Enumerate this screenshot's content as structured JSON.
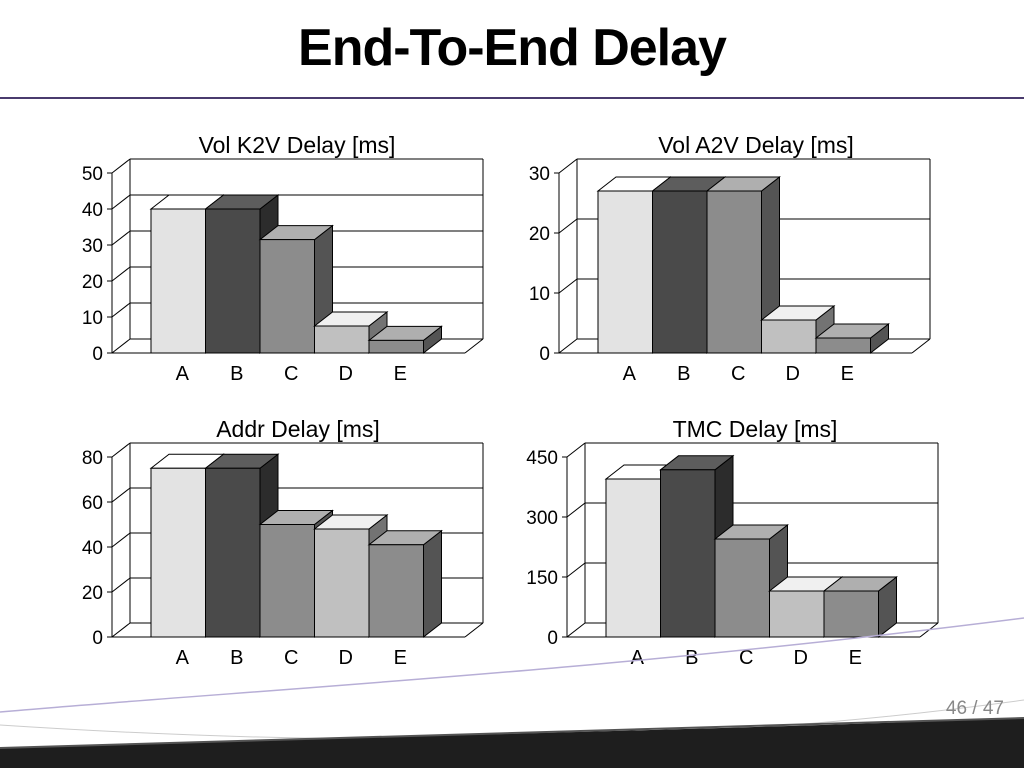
{
  "slide": {
    "title": "End-To-End Delay",
    "page_current": "46",
    "page_separator": "/",
    "page_total": "47"
  },
  "bar_colors": [
    "#e3e3e3",
    "#4a4a4a",
    "#8c8c8c",
    "#c0c0c0",
    "#8c8c8c"
  ],
  "chart_data": [
    {
      "type": "bar",
      "title": "Vol K2V Delay [ms]",
      "categories": [
        "A",
        "B",
        "C",
        "D",
        "E"
      ],
      "values": [
        40,
        40,
        31.5,
        7.5,
        3.5
      ],
      "ylim": [
        0,
        50
      ],
      "yticks": [
        0,
        10,
        20,
        30,
        40,
        50
      ],
      "grid": true
    },
    {
      "type": "bar",
      "title": "Vol A2V Delay [ms]",
      "categories": [
        "A",
        "B",
        "C",
        "D",
        "E"
      ],
      "values": [
        27,
        27,
        27,
        5.5,
        2.5
      ],
      "ylim": [
        0,
        30
      ],
      "yticks": [
        0,
        10,
        20,
        30
      ],
      "grid": true
    },
    {
      "type": "bar",
      "title": "Addr Delay [ms]",
      "categories": [
        "A",
        "B",
        "C",
        "D",
        "E"
      ],
      "values": [
        75,
        75,
        50,
        48,
        41
      ],
      "ylim": [
        0,
        80
      ],
      "yticks": [
        0,
        20,
        40,
        60,
        80
      ],
      "grid": true
    },
    {
      "type": "bar",
      "title": "TMC Delay [ms]",
      "categories": [
        "A",
        "B",
        "C",
        "D",
        "E"
      ],
      "values": [
        395,
        418,
        245,
        115,
        115
      ],
      "ylim": [
        0,
        450
      ],
      "yticks": [
        0,
        150,
        300,
        450
      ],
      "grid": true
    }
  ]
}
